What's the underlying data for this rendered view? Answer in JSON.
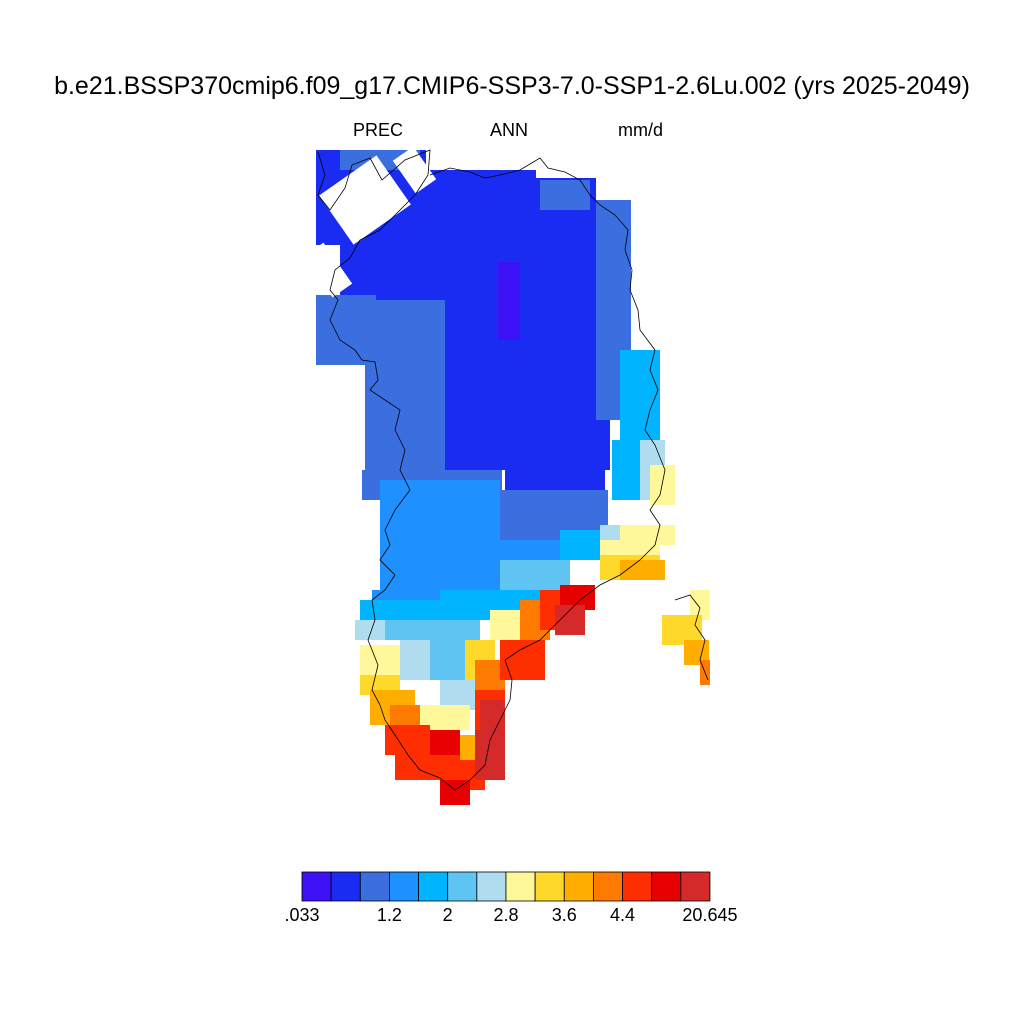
{
  "title": "b.e21.BSSP370cmip6.f09_g17.CMIP6-SSP3-7.0-SSP1-2.6Lu.002 (yrs 2025-2049)",
  "variable": "PREC",
  "season": "ANN",
  "units": "mm/d",
  "colorbar": {
    "colors": [
      "#3d10f5",
      "#1a2cf2",
      "#3b6fe0",
      "#1e90ff",
      "#00b4ff",
      "#5fc4f2",
      "#b0dcf0",
      "#fff89a",
      "#ffd92a",
      "#ffae00",
      "#ff7a00",
      "#ff2e00",
      "#e60000",
      "#d42a2a"
    ],
    "labels": [
      ".033",
      "1.2",
      "2",
      "2.8",
      "3.6",
      "4.4",
      "20.645"
    ]
  }
}
